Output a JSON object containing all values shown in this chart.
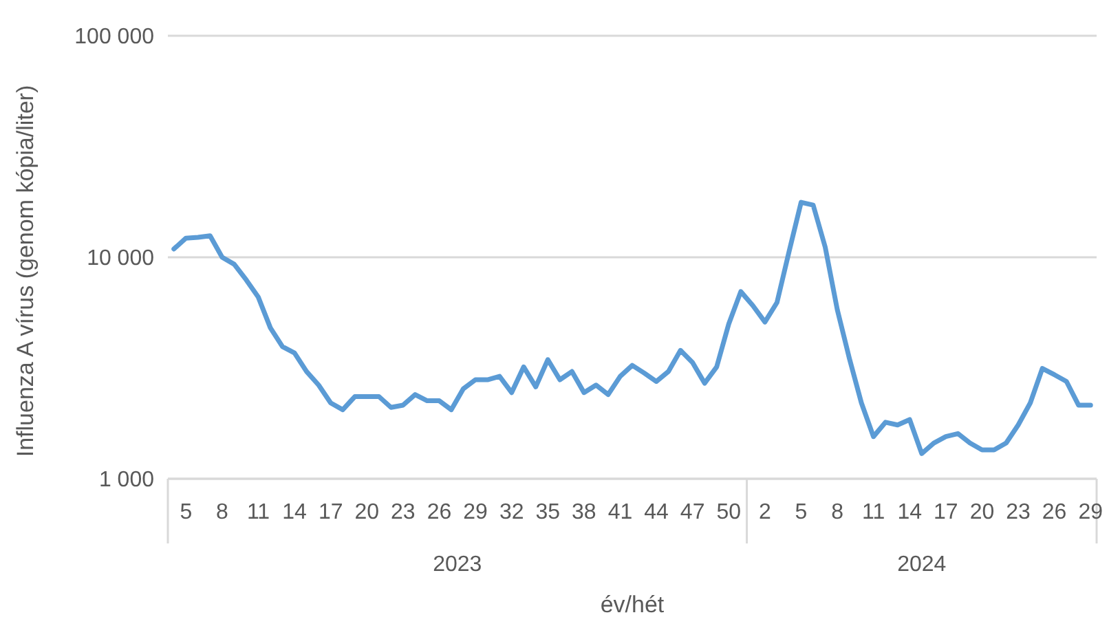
{
  "chart_data": {
    "type": "line",
    "xlabel": "év/hét",
    "ylabel": "Influenza A vírus (genom kópia/liter)",
    "categories": [
      null,
      "5",
      null,
      null,
      "8",
      null,
      null,
      "11",
      null,
      null,
      "14",
      null,
      null,
      "17",
      null,
      null,
      "20",
      null,
      null,
      "23",
      null,
      null,
      "26",
      null,
      null,
      "29",
      null,
      null,
      "32",
      null,
      null,
      "35",
      null,
      null,
      "38",
      null,
      null,
      "41",
      null,
      null,
      "44",
      null,
      null,
      "47",
      null,
      null,
      "50",
      null,
      null,
      "2",
      null,
      null,
      "5",
      null,
      null,
      "8",
      null,
      null,
      "11",
      null,
      null,
      "14",
      null,
      null,
      "17",
      null,
      null,
      "20",
      null,
      null,
      "23",
      null,
      null,
      "26",
      null,
      null,
      "29"
    ],
    "series": [
      {
        "color": "#5b9bd5",
        "values": [
          10900,
          12200,
          12300,
          12500,
          10000,
          9300,
          7900,
          6600,
          4800,
          3950,
          3700,
          3050,
          2650,
          2200,
          2050,
          2350,
          2350,
          2350,
          2100,
          2150,
          2400,
          2250,
          2250,
          2050,
          2550,
          2800,
          2800,
          2900,
          2450,
          3200,
          2600,
          3450,
          2800,
          3050,
          2450,
          2650,
          2400,
          2900,
          3250,
          3000,
          2750,
          3050,
          3800,
          3350,
          2700,
          3200,
          5000,
          7000,
          6050,
          5100,
          6250,
          10600,
          17700,
          17200,
          11100,
          5800,
          3500,
          2200,
          1550,
          1800,
          1750,
          1850,
          1300,
          1450,
          1550,
          1600,
          1450,
          1350,
          1350,
          1450,
          1750,
          2200,
          3150,
          2950,
          2750,
          2150,
          2150
        ]
      }
    ],
    "annotations": [
      "2023",
      "2024"
    ],
    "log": true,
    "ylim": [
      1000,
      100000
    ],
    "yticks": [
      {
        "value": 1000,
        "label": "1 000"
      },
      {
        "value": 10000,
        "label": "10 000"
      },
      {
        "value": 100000,
        "label": "100 000"
      }
    ],
    "grid": "y",
    "marker": "none",
    "line_style": "solid"
  }
}
